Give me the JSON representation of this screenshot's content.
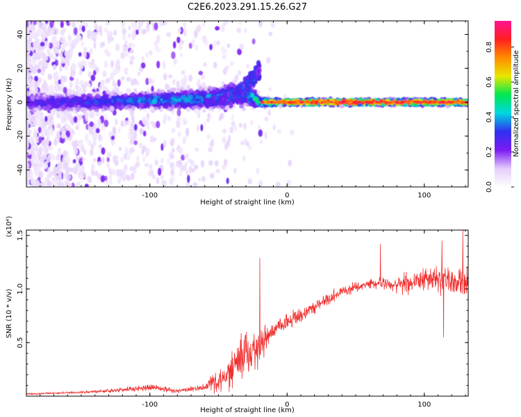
{
  "title": "C2E6.2023.291.15.26.G27",
  "chart_data": [
    {
      "type": "heatmap",
      "xlabel": "Height of straight line (km)",
      "ylabel": "Frequency (Hz)",
      "xlim": [
        -190,
        132
      ],
      "ylim": [
        -50,
        48
      ],
      "xticks": [
        -100,
        0,
        100
      ],
      "yticks": [
        -40,
        -20,
        0,
        20,
        40
      ],
      "colorbar": {
        "label": "Normalized spectral amplitude",
        "range": [
          0.0,
          0.95
        ],
        "ticks": [
          "0.0",
          "0.2",
          "0.4",
          "0.6",
          "0.8"
        ],
        "colors": [
          "#ffffff",
          "#e4cdfb",
          "#7b1bf2",
          "#3030f0",
          "#00d8e0",
          "#00e850",
          "#e8e800",
          "#ff8c00",
          "#ff2020",
          "#ff1493"
        ]
      },
      "band": {
        "description_points": [
          {
            "x": -190,
            "center": 0,
            "halfwidth": 7,
            "level": 0.25
          },
          {
            "x": -150,
            "center": 0,
            "halfwidth": 6,
            "level": 0.3
          },
          {
            "x": -100,
            "center": 1,
            "halfwidth": 6,
            "level": 0.38
          },
          {
            "x": -60,
            "center": 2,
            "halfwidth": 7,
            "level": 0.4
          },
          {
            "x": -30,
            "center": 5,
            "halfwidth": 10,
            "level": 0.35
          },
          {
            "x": -20,
            "center": 0,
            "halfwidth": 3,
            "level": 0.6
          },
          {
            "x": 0,
            "center": 0,
            "halfwidth": 2,
            "level": 0.75
          },
          {
            "x": 50,
            "center": 0,
            "halfwidth": 2,
            "level": 0.85
          },
          {
            "x": 132,
            "center": 0,
            "halfwidth": 2,
            "level": 0.75
          }
        ],
        "hook": {
          "x_start": -60,
          "x_end": -20,
          "freq_end": 23
        }
      }
    },
    {
      "type": "line",
      "xlabel": "Height of straight line (km)",
      "ylabel": "SNR (10 * v/v)",
      "yscale_label": "(x10⁴)",
      "xlim": [
        -190,
        132
      ],
      "ylim": [
        0.0,
        1.55
      ],
      "xticks": [
        -100,
        0,
        100
      ],
      "yticks": [
        "0.5",
        "1.0",
        "1.5"
      ],
      "color": "#f03030",
      "trend": [
        {
          "x": -190,
          "y": 0.02,
          "noise": 0.01
        },
        {
          "x": -140,
          "y": 0.04,
          "noise": 0.02
        },
        {
          "x": -100,
          "y": 0.08,
          "noise": 0.05
        },
        {
          "x": -80,
          "y": 0.05,
          "noise": 0.03
        },
        {
          "x": -60,
          "y": 0.08,
          "noise": 0.05
        },
        {
          "x": -45,
          "y": 0.2,
          "noise": 0.25
        },
        {
          "x": -30,
          "y": 0.4,
          "noise": 0.35
        },
        {
          "x": -20,
          "y": 0.45,
          "noise": 0.3
        },
        {
          "x": -10,
          "y": 0.62,
          "noise": 0.15
        },
        {
          "x": 10,
          "y": 0.75,
          "noise": 0.12
        },
        {
          "x": 40,
          "y": 0.98,
          "noise": 0.08
        },
        {
          "x": 60,
          "y": 1.05,
          "noise": 0.07
        },
        {
          "x": 80,
          "y": 1.05,
          "noise": 0.12
        },
        {
          "x": 110,
          "y": 1.1,
          "noise": 0.2
        },
        {
          "x": 132,
          "y": 1.05,
          "noise": 0.25
        }
      ],
      "peaks": [
        {
          "x": -20,
          "y": 1.29
        },
        {
          "x": 68,
          "y": 1.42
        },
        {
          "x": 113,
          "y": 1.45
        },
        {
          "x": 128,
          "y": 1.55
        },
        {
          "x": 114,
          "y": 0.55
        }
      ]
    }
  ]
}
